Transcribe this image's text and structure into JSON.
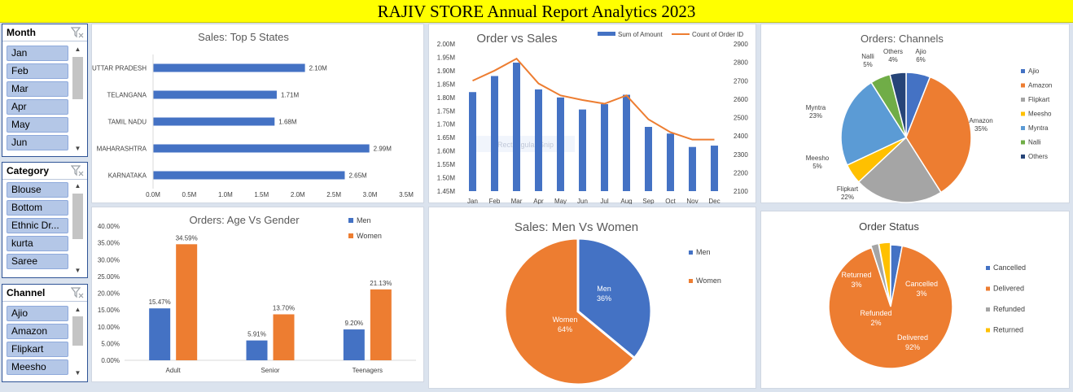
{
  "dashboard": {
    "title": "RAJIV STORE Annual Report Analytics 2023"
  },
  "slicers": {
    "month": {
      "title": "Month",
      "items": [
        "Jan",
        "Feb",
        "Mar",
        "Apr",
        "May",
        "Jun"
      ]
    },
    "category": {
      "title": "Category",
      "items": [
        "Blouse",
        "Bottom",
        "Ethnic Dr...",
        "kurta",
        "Saree"
      ]
    },
    "channel": {
      "title": "Channel",
      "items": [
        "Ajio",
        "Amazon",
        "Flipkart",
        "Meesho"
      ]
    }
  },
  "chart_data": [
    {
      "id": "states",
      "type": "bar",
      "orientation": "horizontal",
      "title": "Sales: Top 5 States",
      "categories": [
        "UTTAR PRADESH",
        "TELANGANA",
        "TAMIL NADU",
        "MAHARASHTRA",
        "KARNATAKA"
      ],
      "values": [
        2.1,
        1.71,
        1.68,
        2.99,
        2.65
      ],
      "data_labels": [
        "2.10M",
        "1.71M",
        "1.68M",
        "2.99M",
        "2.65M"
      ],
      "xticks": [
        "0.0M",
        "0.5M",
        "1.0M",
        "1.5M",
        "2.0M",
        "2.5M",
        "3.0M",
        "3.5M"
      ],
      "xlim": [
        0,
        3.5
      ],
      "color": "#4472c4"
    },
    {
      "id": "ordersales",
      "type": "bar+line",
      "title": "Order vs Sales",
      "categories": [
        "Jan",
        "Feb",
        "Mar",
        "Apr",
        "May",
        "Jun",
        "Jul",
        "Aug",
        "Sep",
        "Oct",
        "Nov",
        "Dec"
      ],
      "series": [
        {
          "name": "Sum of Amount",
          "type": "bar",
          "axis": "left",
          "color": "#4472c4",
          "values": [
            1.82,
            1.88,
            1.93,
            1.83,
            1.8,
            1.755,
            1.775,
            1.81,
            1.69,
            1.665,
            1.615,
            1.62
          ]
        },
        {
          "name": "Count of Order ID",
          "type": "line",
          "axis": "right",
          "color": "#ed7d31",
          "values": [
            2700,
            2755,
            2820,
            2685,
            2620,
            2595,
            2575,
            2620,
            2490,
            2420,
            2380,
            2380
          ]
        }
      ],
      "yticks_left": [
        "1.45M",
        "1.50M",
        "1.55M",
        "1.60M",
        "1.65M",
        "1.70M",
        "1.75M",
        "1.80M",
        "1.85M",
        "1.90M",
        "1.95M",
        "2.00M"
      ],
      "ylim_left": [
        1.45,
        2.0
      ],
      "yticks_right": [
        "2100",
        "2200",
        "2300",
        "2400",
        "2500",
        "2600",
        "2700",
        "2800",
        "2900"
      ],
      "ylim_right": [
        2100,
        2900
      ],
      "watermark": "Rectangular Snip"
    },
    {
      "id": "channels",
      "type": "pie",
      "title": "Orders: Channels",
      "labels": [
        "Ajio",
        "Amazon",
        "Flipkart",
        "Meesho",
        "Myntra",
        "Nalli",
        "Others"
      ],
      "values": [
        6,
        35,
        22,
        5,
        23,
        5,
        4
      ],
      "data_labels": [
        "6%",
        "35%",
        "22%",
        "5%",
        "23%",
        "5%",
        "4%"
      ],
      "colors": [
        "#4472c4",
        "#ed7d31",
        "#a5a5a5",
        "#ffc000",
        "#5b9bd5",
        "#70ad47",
        "#264478"
      ],
      "legend": "right"
    },
    {
      "id": "agegender",
      "type": "bar",
      "title": "Orders: Age Vs Gender",
      "categories": [
        "Adult",
        "Senior",
        "Teenagers"
      ],
      "series": [
        {
          "name": "Men",
          "color": "#4472c4",
          "values": [
            15.47,
            5.91,
            9.2
          ],
          "labels": [
            "15.47%",
            "5.91%",
            "9.20%"
          ]
        },
        {
          "name": "Women",
          "color": "#ed7d31",
          "values": [
            34.59,
            13.7,
            21.13
          ],
          "labels": [
            "34.59%",
            "13.70%",
            "21.13%"
          ]
        }
      ],
      "yticks": [
        "0.00%",
        "5.00%",
        "10.00%",
        "15.00%",
        "20.00%",
        "25.00%",
        "30.00%",
        "35.00%",
        "40.00%"
      ],
      "ylim": [
        0,
        40
      ],
      "legend": "top-right"
    },
    {
      "id": "menwomen",
      "type": "pie",
      "title": "Sales: Men Vs Women",
      "labels": [
        "Men",
        "Women"
      ],
      "values": [
        36,
        64
      ],
      "data_labels": [
        "36%",
        "64%"
      ],
      "colors": [
        "#4472c4",
        "#ed7d31"
      ],
      "legend": "right"
    },
    {
      "id": "status",
      "type": "pie",
      "title": "Order Status",
      "labels": [
        "Cancelled",
        "Delivered",
        "Refunded",
        "Returned"
      ],
      "values": [
        3,
        92,
        2,
        3
      ],
      "data_labels": [
        "3%",
        "92%",
        "2%",
        "3%"
      ],
      "colors": [
        "#4472c4",
        "#ed7d31",
        "#a5a5a5",
        "#ffc000"
      ],
      "legend": "right"
    }
  ]
}
